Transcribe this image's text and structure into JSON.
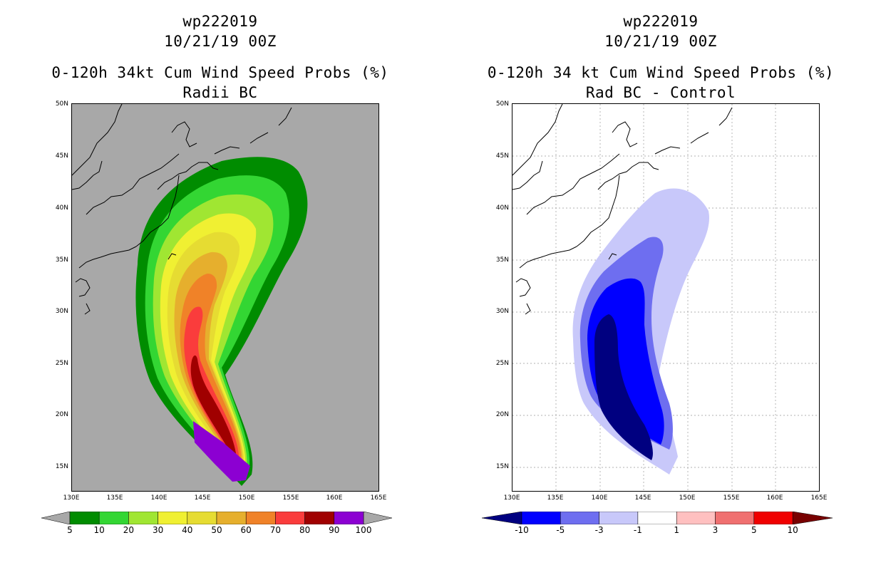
{
  "left_panel": {
    "storm_id": "wp222019",
    "date": "10/21/19 00Z",
    "title": "0-120h 34kt Cum Wind Speed Probs (%)",
    "subtitle": "Radii BC",
    "background": "#a8a8a8",
    "lat_labels": [
      "50N",
      "45N",
      "40N",
      "35N",
      "30N",
      "25N",
      "20N",
      "15N"
    ],
    "lon_labels": [
      "130E",
      "135E",
      "140E",
      "145E",
      "150E",
      "155E",
      "160E",
      "165E"
    ],
    "colorbar": {
      "colors": [
        "#008c00",
        "#33d633",
        "#a0e632",
        "#f0f032",
        "#e6dc32",
        "#e6af2d",
        "#f08228",
        "#fa3c3c",
        "#a00000",
        "#8c00d2"
      ],
      "labels": [
        "5",
        "10",
        "20",
        "30",
        "40",
        "50",
        "60",
        "70",
        "80",
        "90",
        "100"
      ]
    }
  },
  "right_panel": {
    "storm_id": "wp222019",
    "date": "10/21/19 00Z",
    "title": "0-120h 34 kt Cum Wind Speed Probs (%)",
    "subtitle": "Rad BC - Control",
    "background": "#ffffff",
    "lat_labels": [
      "50N",
      "45N",
      "40N",
      "35N",
      "30N",
      "25N",
      "20N",
      "15N"
    ],
    "lon_labels": [
      "130E",
      "135E",
      "140E",
      "145E",
      "150E",
      "155E",
      "160E",
      "165E"
    ],
    "colorbar": {
      "colors": [
        "#0000ff",
        "#6e6ef0",
        "#c8c8fa",
        "#ffffff",
        "#ffc0c0",
        "#f07070",
        "#f00000"
      ],
      "left_arrow_color": "#000080",
      "right_arrow_color": "#780000",
      "labels": [
        "-10",
        "-5",
        "-3",
        "-1",
        "1",
        "3",
        "5",
        "10"
      ]
    }
  }
}
